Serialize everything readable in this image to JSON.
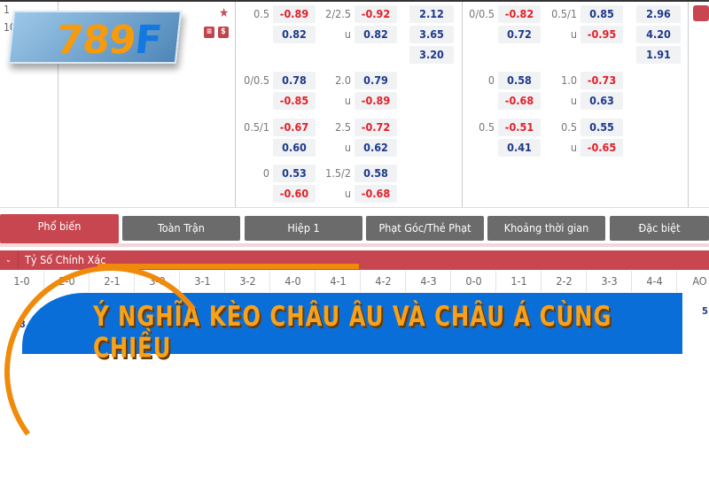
{
  "logo": {
    "text_a": "789",
    "text_b": "F"
  },
  "match": {
    "time_top": "1",
    "time_bottom": "10"
  },
  "icons": [
    "star-icon",
    "stats-icon",
    "dollar-icon"
  ],
  "fulltime": {
    "rows": [
      {
        "hcap": "0.5",
        "h1": "-0.89",
        "h2": "0.82",
        "ou": "2/2.5",
        "ou_u": "u",
        "o1": "-0.92",
        "o2": "0.82",
        "x12": [
          "2.12",
          "3.65",
          "3.20"
        ]
      },
      {
        "hcap": "0/0.5",
        "h1": "0.78",
        "h2": "-0.85",
        "ou": "2.0",
        "ou_u": "u",
        "o1": "0.79",
        "o2": "-0.89"
      },
      {
        "hcap": "0.5/1",
        "h1": "-0.67",
        "h2": "0.60",
        "ou": "2.5",
        "ou_u": "u",
        "o1": "-0.72",
        "o2": "0.62"
      },
      {
        "hcap": "0",
        "h1": "0.53",
        "h2": "-0.60",
        "ou": "1.5/2",
        "ou_u": "u",
        "o1": "0.58",
        "o2": "-0.68"
      }
    ]
  },
  "firsthalf": {
    "rows": [
      {
        "hcap": "0/0.5",
        "h1": "-0.82",
        "h2": "0.72",
        "ou": "0.5/1",
        "ou_u": "u",
        "o1": "0.85",
        "o2": "-0.95",
        "x12": [
          "2.96",
          "4.20",
          "1.91"
        ]
      },
      {
        "hcap": "0",
        "h1": "0.58",
        "h2": "-0.68",
        "ou": "1.0",
        "ou_u": "u",
        "o1": "-0.73",
        "o2": "0.63"
      },
      {
        "hcap": "0.5",
        "h1": "-0.51",
        "h2": "0.41",
        "ou": "0.5",
        "ou_u": "u",
        "o1": "0.55",
        "o2": "-0.65"
      }
    ]
  },
  "tabs": [
    "Phổ biến",
    "Toàn Trận",
    "Hiệp 1",
    "Phạt Góc/Thẻ Phạt",
    "Khoảng thời gian",
    "Đặc biệt"
  ],
  "section": {
    "title": "Tỷ Số Chính Xác"
  },
  "scores": [
    "1-0",
    "2-0",
    "2-1",
    "3-0",
    "3-1",
    "3-2",
    "4-0",
    "4-1",
    "4-2",
    "4-3",
    "0-0",
    "1-1",
    "2-2",
    "3-3",
    "4-4",
    "AO"
  ],
  "peek": {
    "left": ".8",
    "right": "5"
  },
  "banner": {
    "title": "Ý NGHĨA KÈO CHÂU ÂU VÀ CHÂU Á CÙNG CHIỀU"
  },
  "colors": {
    "red": "#c84650",
    "negative": "#e0202a",
    "positive": "#1e3a8a",
    "banner": "#0a6ed8",
    "banner_text": "#f7a21a"
  }
}
